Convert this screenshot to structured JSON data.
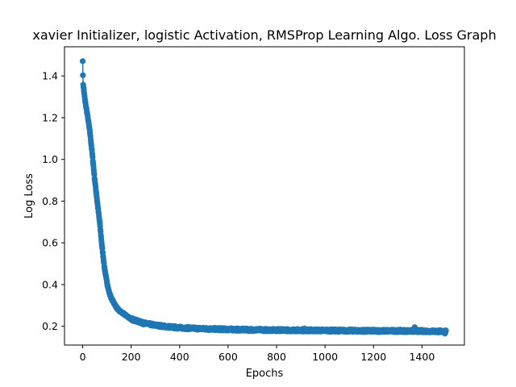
{
  "chart_data": {
    "type": "line",
    "title": "xavier Initializer, logistic Activation, RMSProp Learning Algo. Loss Graph",
    "xlabel": "Epochs",
    "ylabel": "Log Loss",
    "xlim": [
      -75,
      1575
    ],
    "ylim": [
      0.11,
      1.54
    ],
    "xticks": [
      0,
      200,
      400,
      600,
      800,
      1000,
      1200,
      1400
    ],
    "yticks": [
      0.2,
      0.4,
      0.6,
      0.8,
      1.0,
      1.2,
      1.4
    ],
    "ytick_labels": [
      "0.2",
      "0.4",
      "0.6",
      "0.8",
      "1.0",
      "1.2",
      "1.4"
    ],
    "grid": false,
    "legend": "none",
    "series_color": "#1f77b4",
    "marker": "circle",
    "n_points": 1500,
    "series": [
      {
        "x": [
          0,
          1,
          2,
          5,
          10,
          20,
          30,
          40,
          50,
          60,
          70,
          80,
          90,
          100,
          110,
          120,
          130,
          140,
          150,
          175,
          200,
          250,
          300,
          350,
          400,
          500,
          600,
          700,
          800,
          900,
          1000,
          1100,
          1200,
          1300,
          1400,
          1499
        ],
        "y": [
          1.475,
          1.4,
          1.36,
          1.33,
          1.28,
          1.21,
          1.13,
          1.02,
          0.9,
          0.8,
          0.7,
          0.58,
          0.48,
          0.41,
          0.36,
          0.33,
          0.31,
          0.29,
          0.275,
          0.255,
          0.235,
          0.215,
          0.205,
          0.198,
          0.193,
          0.188,
          0.185,
          0.183,
          0.182,
          0.181,
          0.18,
          0.179,
          0.178,
          0.178,
          0.177,
          0.175
        ]
      }
    ],
    "outliers": [
      {
        "x": 320,
        "y": 0.205
      },
      {
        "x": 915,
        "y": 0.19
      },
      {
        "x": 1370,
        "y": 0.196
      },
      {
        "x": 1495,
        "y": 0.165
      }
    ]
  }
}
